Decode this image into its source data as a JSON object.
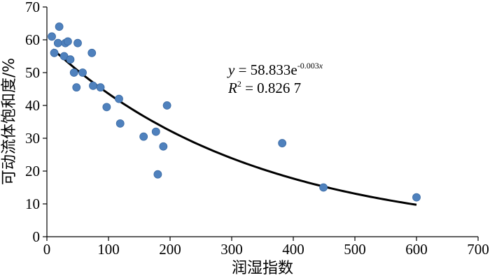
{
  "chart_data": {
    "type": "scatter",
    "xlabel": "润湿指数",
    "ylabel": "可动流体饱和度/%",
    "xlim": [
      0,
      700
    ],
    "ylim": [
      0,
      70
    ],
    "x_ticks": [
      "0",
      "100",
      "200",
      "300",
      "400",
      "500",
      "600",
      "700"
    ],
    "y_ticks": [
      "0",
      "10",
      "20",
      "30",
      "40",
      "50",
      "60",
      "70"
    ],
    "grid": false,
    "colors": {
      "points": "#4f81bd",
      "fit": "#000000"
    },
    "points": [
      {
        "x": 8,
        "y": 61
      },
      {
        "x": 12,
        "y": 56
      },
      {
        "x": 18,
        "y": 59
      },
      {
        "x": 20,
        "y": 64
      },
      {
        "x": 28,
        "y": 55
      },
      {
        "x": 30,
        "y": 59
      },
      {
        "x": 34,
        "y": 59.5
      },
      {
        "x": 38,
        "y": 54
      },
      {
        "x": 44,
        "y": 50
      },
      {
        "x": 48,
        "y": 45.5
      },
      {
        "x": 50,
        "y": 59
      },
      {
        "x": 58,
        "y": 50
      },
      {
        "x": 73,
        "y": 56
      },
      {
        "x": 75,
        "y": 46
      },
      {
        "x": 87,
        "y": 45.5
      },
      {
        "x": 97,
        "y": 39.5
      },
      {
        "x": 117,
        "y": 42
      },
      {
        "x": 119,
        "y": 34.5
      },
      {
        "x": 157,
        "y": 30.5
      },
      {
        "x": 177,
        "y": 32
      },
      {
        "x": 180,
        "y": 19
      },
      {
        "x": 189,
        "y": 27.5
      },
      {
        "x": 195,
        "y": 40
      },
      {
        "x": 382,
        "y": 28.5
      },
      {
        "x": 449,
        "y": 15
      },
      {
        "x": 600,
        "y": 12
      }
    ],
    "fit": {
      "type": "exponential",
      "a": 58.833,
      "b": -0.003,
      "x_start": 10,
      "x_end": 600
    },
    "annotation": {
      "line1": {
        "y_var": "y",
        "equals": " = 58.833e",
        "exponent_value": "-0.003",
        "exponent_var": "x"
      },
      "line2": {
        "r_var": "R",
        "r_power": "2",
        "value": " = 0.826 7"
      }
    }
  }
}
